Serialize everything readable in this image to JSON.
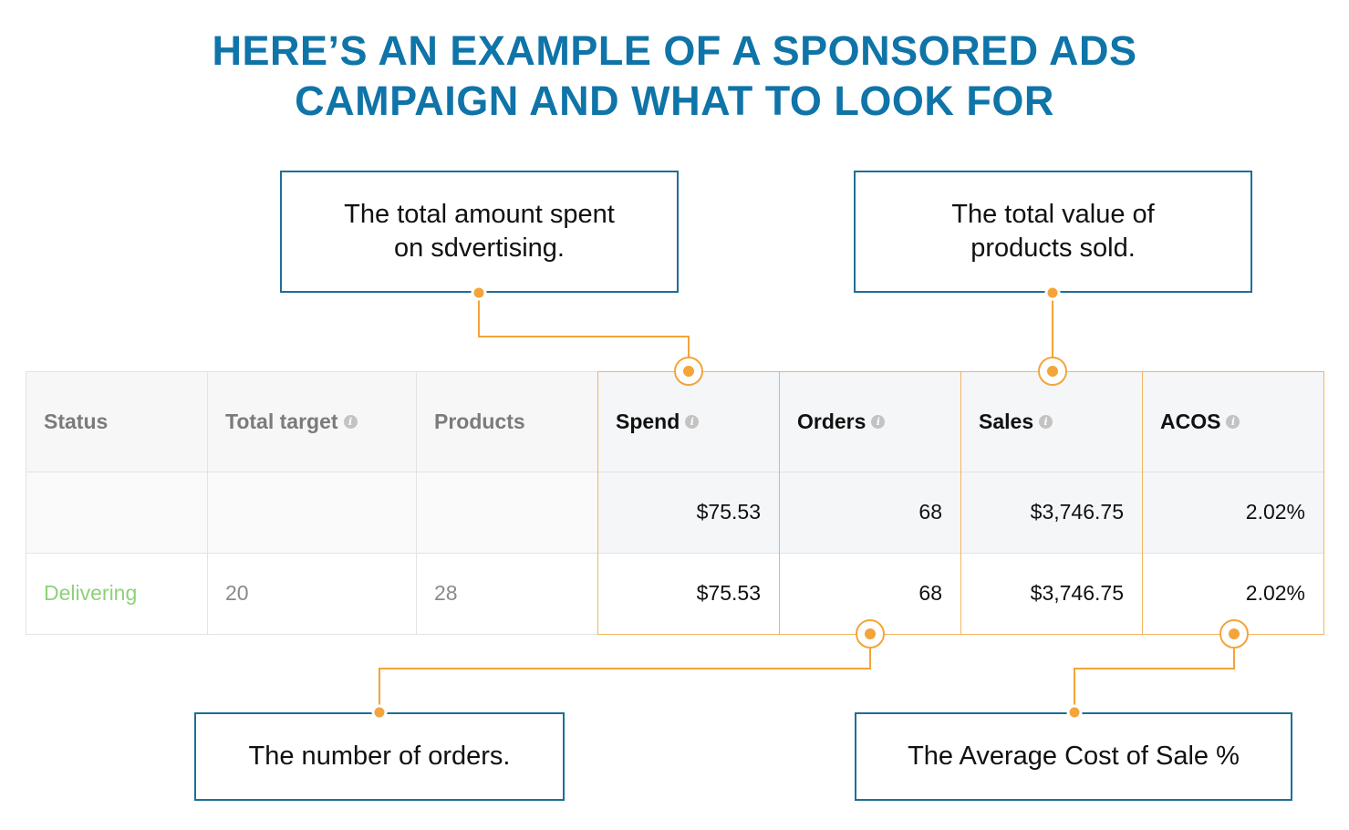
{
  "title": {
    "line1": "HERE’S AN EXAMPLE OF A SPONSORED ADS",
    "line2": "CAMPAIGN AND WHAT TO LOOK FOR"
  },
  "callouts": {
    "spend": {
      "line1": "The total amount spent",
      "line2": "on sdvertising."
    },
    "sales": {
      "line1": "The total value of",
      "line2": "products sold."
    },
    "orders": {
      "line1": "The number of orders."
    },
    "acos": {
      "line1": "The Average Cost of Sale %"
    }
  },
  "table": {
    "headers": {
      "status": "Status",
      "total_target": "Total target",
      "products": "Products",
      "spend": "Spend",
      "orders": "Orders",
      "sales": "Sales",
      "acos": "ACOS"
    },
    "totals": {
      "spend": "$75.53",
      "orders": "68",
      "sales": "$3,746.75",
      "acos": "2.02%"
    },
    "row": {
      "status": "Delivering",
      "total_target": "20",
      "products": "28",
      "spend": "$75.53",
      "orders": "68",
      "sales": "$3,746.75",
      "acos": "2.02%"
    }
  },
  "colors": {
    "title": "#0f74a8",
    "callout_border": "#1d6f97",
    "accent_orange": "#f3a43a",
    "status_green": "#8ed17a"
  }
}
